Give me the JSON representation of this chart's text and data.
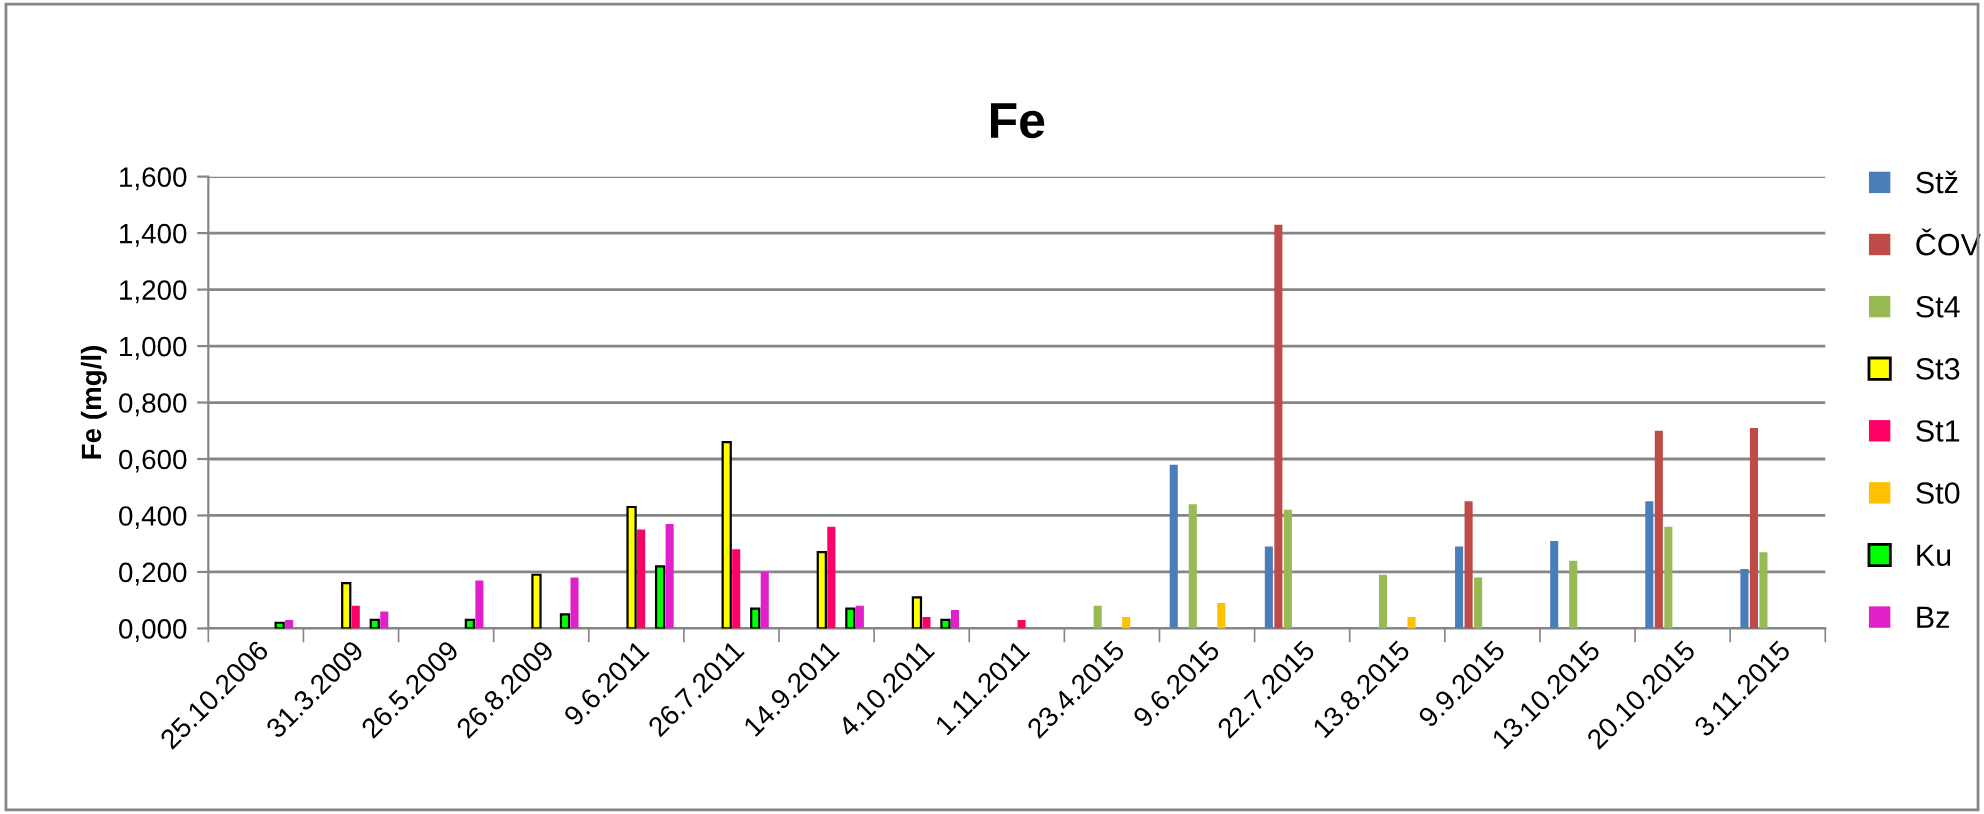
{
  "chart_data": {
    "type": "bar",
    "title": "Fe",
    "ylabel": "Fe (mg/l)",
    "categories": [
      "25.10.2006",
      "31.3.2009",
      "26.5.2009",
      "26.8.2009",
      "9.6.2011",
      "26.7.2011",
      "14.9.2011",
      "4.10.2011",
      "1.11.2011",
      "23.4.2015",
      "9.6.2015",
      "22.7.2015",
      "13.8.2015",
      "9.9.2015",
      "13.10.2015",
      "20.10.2015",
      "3.11.2015"
    ],
    "series": [
      {
        "name": "Stž",
        "color": "#4a7ebb",
        "values": [
          null,
          null,
          null,
          null,
          null,
          null,
          null,
          null,
          null,
          null,
          0.58,
          0.29,
          null,
          0.29,
          0.31,
          0.45,
          0.21
        ]
      },
      {
        "name": "ČOV",
        "color": "#be4b48",
        "values": [
          null,
          null,
          null,
          null,
          null,
          null,
          null,
          null,
          null,
          null,
          null,
          1.43,
          null,
          0.45,
          null,
          0.7,
          0.71
        ]
      },
      {
        "name": "St4",
        "color": "#98b954",
        "values": [
          null,
          null,
          null,
          null,
          null,
          null,
          null,
          null,
          null,
          0.08,
          0.44,
          0.42,
          0.19,
          0.18,
          0.24,
          0.36,
          0.27
        ]
      },
      {
        "name": "St3",
        "color": "#ffff00",
        "values": [
          null,
          0.16,
          null,
          0.19,
          0.43,
          0.66,
          0.27,
          0.11,
          null,
          null,
          null,
          null,
          null,
          null,
          null,
          null,
          null
        ]
      },
      {
        "name": "St1",
        "color": "#ff0066",
        "values": [
          null,
          0.08,
          null,
          null,
          0.35,
          0.28,
          0.36,
          0.04,
          0.03,
          null,
          null,
          null,
          null,
          null,
          null,
          null,
          null
        ]
      },
      {
        "name": "St0",
        "color": "#ffc000",
        "values": [
          null,
          null,
          null,
          null,
          null,
          null,
          null,
          null,
          null,
          0.04,
          0.09,
          null,
          0.04,
          null,
          null,
          null,
          null
        ]
      },
      {
        "name": "Ku",
        "color": "#00ff00",
        "values": [
          0.02,
          0.03,
          0.03,
          0.05,
          0.22,
          0.07,
          0.07,
          0.03,
          null,
          null,
          null,
          null,
          null,
          null,
          null,
          null,
          null
        ]
      },
      {
        "name": "Bz",
        "color": "#e020c8",
        "values": [
          0.03,
          0.06,
          0.17,
          0.18,
          0.37,
          0.2,
          0.08,
          0.065,
          null,
          null,
          null,
          null,
          null,
          null,
          null,
          null,
          null
        ]
      }
    ],
    "ylim": [
      0,
      1.6
    ],
    "yticks": [
      {
        "value": 0,
        "label": "0,000"
      },
      {
        "value": 0.2,
        "label": "0,200"
      },
      {
        "value": 0.4,
        "label": "0,400"
      },
      {
        "value": 0.6,
        "label": "0,600"
      },
      {
        "value": 0.8,
        "label": "0,800"
      },
      {
        "value": 1.0,
        "label": "1,000"
      },
      {
        "value": 1.2,
        "label": "1,200"
      },
      {
        "value": 1.4,
        "label": "1,400"
      },
      {
        "value": 1.6,
        "label": "1,600"
      }
    ],
    "grid": "y",
    "legend": "right"
  }
}
